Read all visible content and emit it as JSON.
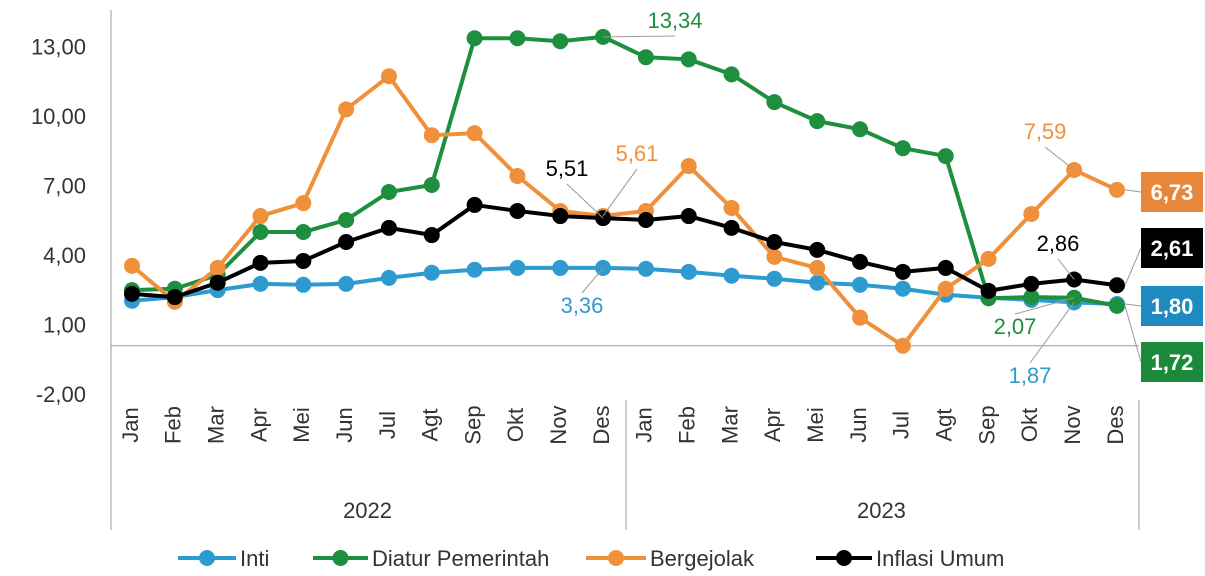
{
  "chart_data": {
    "type": "line",
    "categories": [
      "Jan",
      "Feb",
      "Mar",
      "Apr",
      "Mei",
      "Jun",
      "Jul",
      "Agt",
      "Sep",
      "Okt",
      "Nov",
      "Des",
      "Jan",
      "Feb",
      "Mar",
      "Apr",
      "Mei",
      "Jun",
      "Jul",
      "Agt",
      "Sep",
      "Okt",
      "Nov",
      "Des"
    ],
    "year_groups": [
      "2022",
      "2023"
    ],
    "ylim": [
      -2,
      14.5
    ],
    "yticks": [
      {
        "value": -2,
        "label": "-2,00"
      },
      {
        "value": 1,
        "label": "1,00"
      },
      {
        "value": 4,
        "label": "4,00"
      },
      {
        "value": 7,
        "label": "7,00"
      },
      {
        "value": 10,
        "label": "10,00"
      },
      {
        "value": 13,
        "label": "13,00"
      }
    ],
    "series": [
      {
        "name": "Inti",
        "color": "#2e9bd0",
        "box_color": "#1f8ac0",
        "values": [
          1.94,
          2.1,
          2.4,
          2.67,
          2.63,
          2.67,
          2.93,
          3.15,
          3.28,
          3.36,
          3.36,
          3.36,
          3.32,
          3.19,
          3.02,
          2.89,
          2.72,
          2.63,
          2.46,
          2.2,
          2.07,
          1.98,
          1.87,
          1.8
        ],
        "value_labels": [
          null,
          null,
          null,
          null,
          null,
          null,
          null,
          null,
          null,
          null,
          null,
          "3,36",
          null,
          null,
          null,
          null,
          null,
          null,
          null,
          null,
          null,
          null,
          "1,87",
          "1,80"
        ]
      },
      {
        "name": "Diatur Pemerintah",
        "color": "#1e8f3e",
        "box_color": "#1a8a3a",
        "values": [
          2.4,
          2.46,
          3.06,
          4.91,
          4.91,
          5.43,
          6.64,
          6.94,
          13.28,
          13.28,
          13.15,
          13.34,
          12.46,
          12.37,
          11.72,
          10.52,
          9.7,
          9.35,
          8.53,
          8.19,
          2.05,
          2.1,
          2.07,
          1.72
        ],
        "value_labels": [
          null,
          null,
          null,
          null,
          null,
          null,
          null,
          null,
          null,
          null,
          null,
          "13,34",
          null,
          null,
          null,
          null,
          null,
          null,
          null,
          null,
          null,
          null,
          "2,07",
          "1,72"
        ]
      },
      {
        "name": "Bergejolak",
        "color": "#f0903a",
        "box_color": "#e8873a",
        "values": [
          3.45,
          1.9,
          3.36,
          5.6,
          6.16,
          10.21,
          11.64,
          9.09,
          9.18,
          7.33,
          5.82,
          5.61,
          5.82,
          7.76,
          5.95,
          3.84,
          3.36,
          1.21,
          0.0,
          2.46,
          3.75,
          5.69,
          7.59,
          6.73
        ],
        "value_labels": [
          null,
          null,
          null,
          null,
          null,
          null,
          null,
          null,
          null,
          null,
          null,
          "5,61",
          null,
          null,
          null,
          null,
          null,
          null,
          null,
          null,
          null,
          null,
          "7,59",
          "6,73"
        ]
      },
      {
        "name": "Inflasi Umum",
        "color": "#000000",
        "box_color": "#000000",
        "values": [
          2.24,
          2.1,
          2.72,
          3.58,
          3.66,
          4.48,
          5.09,
          4.78,
          6.08,
          5.82,
          5.6,
          5.51,
          5.43,
          5.6,
          5.09,
          4.48,
          4.14,
          3.62,
          3.19,
          3.36,
          2.37,
          2.67,
          2.86,
          2.61
        ],
        "value_labels": [
          null,
          null,
          null,
          null,
          null,
          null,
          null,
          null,
          null,
          null,
          null,
          "5,51",
          null,
          null,
          null,
          null,
          null,
          null,
          null,
          null,
          null,
          null,
          "2,86",
          "2,61"
        ]
      }
    ]
  }
}
